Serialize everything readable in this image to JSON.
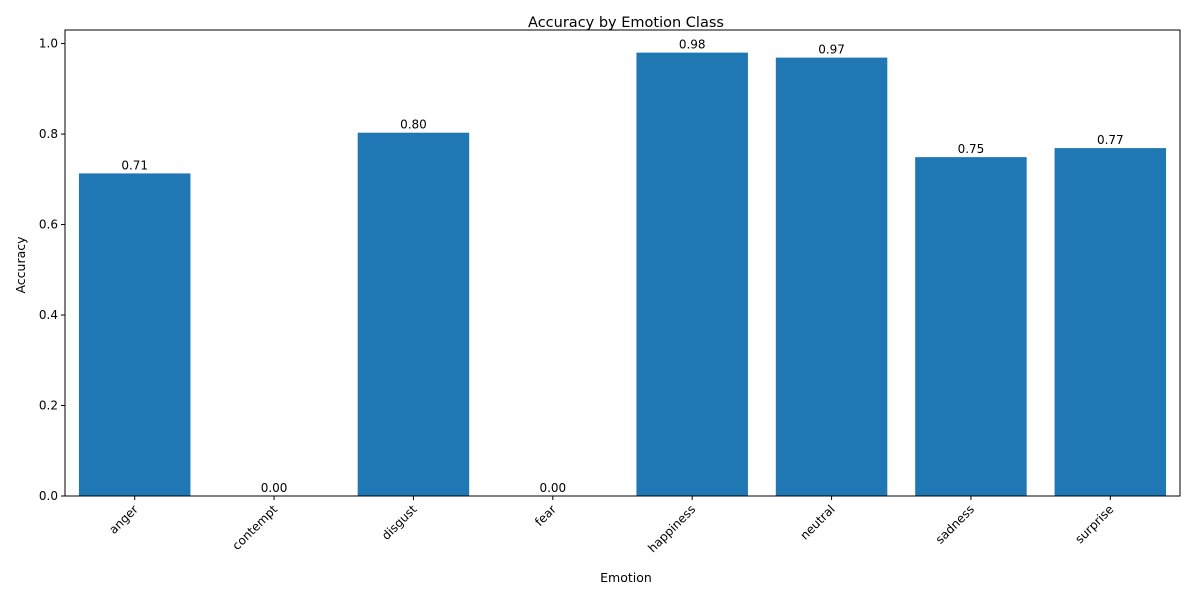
{
  "chart_data": {
    "type": "bar",
    "title": "Accuracy by Emotion Class",
    "xlabel": "Emotion",
    "ylabel": "Accuracy",
    "categories": [
      "anger",
      "contempt",
      "disgust",
      "fear",
      "happiness",
      "neutral",
      "sadness",
      "surprise"
    ],
    "values": [
      0.713,
      0.0,
      0.803,
      0.0,
      0.98,
      0.969,
      0.749,
      0.769
    ],
    "data_labels": [
      "0.71",
      "0.00",
      "0.80",
      "0.00",
      "0.98",
      "0.97",
      "0.75",
      "0.77"
    ],
    "ylim": [
      0,
      1.03
    ],
    "yticks": [
      0.0,
      0.2,
      0.4,
      0.6,
      0.8,
      1.0
    ],
    "ytick_labels": [
      "0.0",
      "0.2",
      "0.4",
      "0.6",
      "0.8",
      "1.0"
    ],
    "xtick_rotation": 45,
    "grid": false,
    "legend": "none",
    "bar_color": "#1f77b4"
  }
}
